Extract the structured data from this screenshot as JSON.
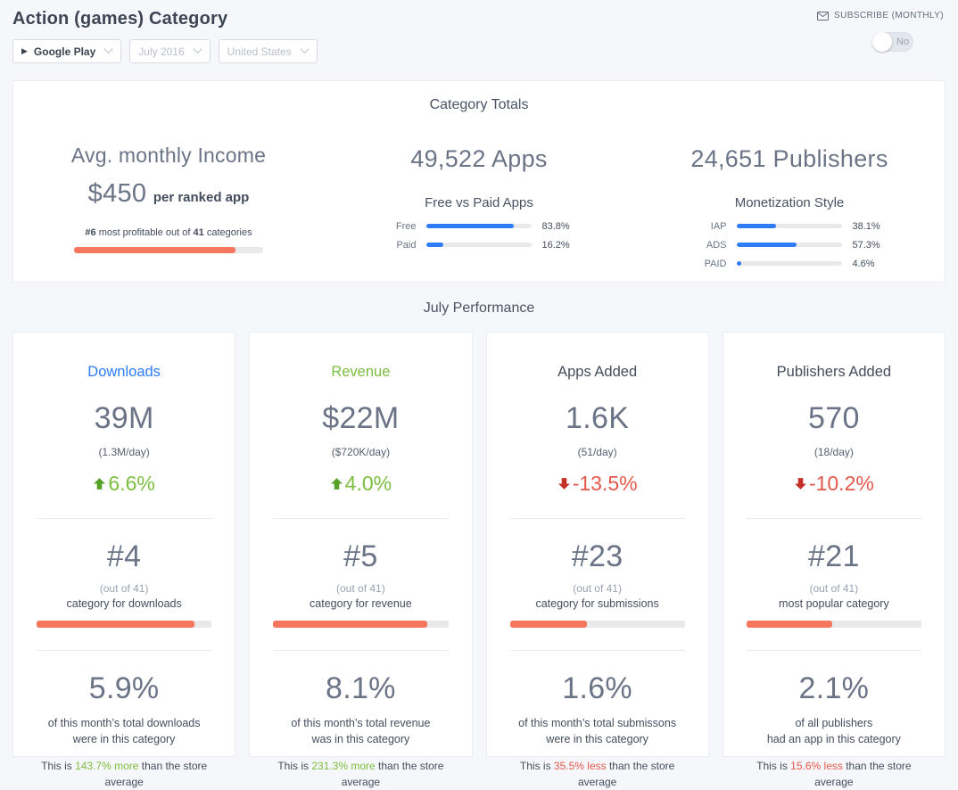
{
  "colors": {
    "accent_orange": "#f6765e",
    "accent_blue": "#2d7cf6",
    "accent_green": "#7cbd3f",
    "accent_red": "#e4584a"
  },
  "header": {
    "title": "Action (games) Category",
    "filters": [
      {
        "label": "Google Play"
      },
      {
        "label": "July 2016"
      },
      {
        "label": "United States"
      }
    ],
    "subscribe_label": "SUBSCRIBE (MONTHLY)",
    "toggle_label": "No"
  },
  "totals": {
    "heading": "Category Totals",
    "income": {
      "title": "Avg. monthly Income",
      "value": "$450",
      "value_suffix": "per ranked app",
      "rank_prefix": "#6",
      "rank_mid": " most profitable out of ",
      "rank_count": "41",
      "rank_suffix": " categories",
      "bar_pct": 85.4
    },
    "apps": {
      "title": "49,522 Apps",
      "subtitle": "Free vs Paid Apps",
      "bars": [
        {
          "label": "Free",
          "value": "83.8%",
          "pct": 83.8
        },
        {
          "label": "Paid",
          "value": "16.2%",
          "pct": 16.2
        }
      ]
    },
    "publishers": {
      "title": "24,651 Publishers",
      "subtitle": "Monetization Style",
      "bars": [
        {
          "label": "IAP",
          "value": "38.1%",
          "pct": 38.1
        },
        {
          "label": "ADS",
          "value": "57.3%",
          "pct": 57.3
        },
        {
          "label": "PAID",
          "value": "4.6%",
          "pct": 4.6
        }
      ]
    }
  },
  "performance": {
    "heading": "July Performance",
    "cards": [
      {
        "title": "Downloads",
        "title_color": "#2d7cf6",
        "value": "39M",
        "per_day": "(1.3M/day)",
        "change": "6.6%",
        "direction": "up",
        "rank": "#4",
        "rank_note": "(out of 41)",
        "rank_label": "category for downloads",
        "rank_pct": 90,
        "share": "5.9%",
        "share_line1": "of this month’s total downloads",
        "share_line2": "were in this category",
        "avg_prefix": "This is ",
        "avg_highlight": "143.7% more",
        "avg_suffix": " than the store average",
        "avg_direction": "more"
      },
      {
        "title": "Revenue",
        "title_color": "#7cbd3f",
        "value": "$22M",
        "per_day": "($720K/day)",
        "change": "4.0%",
        "direction": "up",
        "rank": "#5",
        "rank_note": "(out of 41)",
        "rank_label": "category for revenue",
        "rank_pct": 88,
        "share": "8.1%",
        "share_line1": "of this month’s total revenue",
        "share_line2": "was in this category",
        "avg_prefix": "This is ",
        "avg_highlight": "231.3% more",
        "avg_suffix": " than the store average",
        "avg_direction": "more"
      },
      {
        "title": "Apps Added",
        "title_color": "#454d5d",
        "value": "1.6K",
        "per_day": "(51/day)",
        "change": "-13.5%",
        "direction": "down",
        "rank": "#23",
        "rank_note": "(out of 41)",
        "rank_label": "category for submissions",
        "rank_pct": 44,
        "share": "1.6%",
        "share_line1": "of this month’s total submissons",
        "share_line2": "were in this category",
        "avg_prefix": "This is ",
        "avg_highlight": "35.5% less",
        "avg_suffix": " than the store average",
        "avg_direction": "less"
      },
      {
        "title": "Publishers Added",
        "title_color": "#454d5d",
        "value": "570",
        "per_day": "(18/day)",
        "change": "-10.2%",
        "direction": "down",
        "rank": "#21",
        "rank_note": "(out of 41)",
        "rank_label": "most popular category",
        "rank_pct": 49,
        "share": "2.1%",
        "share_line1": "of all publishers",
        "share_line2": "had an app in this category",
        "avg_prefix": "This is ",
        "avg_highlight": "15.6% less",
        "avg_suffix": " than the store average",
        "avg_direction": "less"
      }
    ]
  }
}
